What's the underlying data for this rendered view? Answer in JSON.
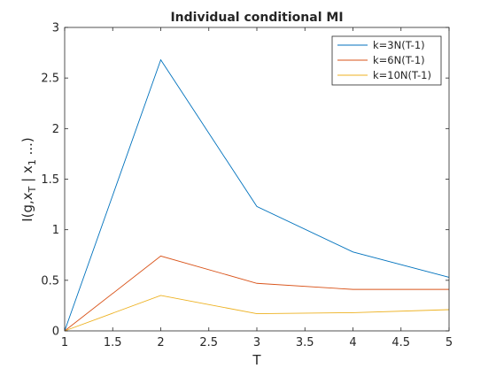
{
  "chart_data": {
    "type": "line",
    "title": "Individual conditional MI",
    "xlabel": "T",
    "ylabel": {
      "main": "I(g,x",
      "sub1": "T",
      "mid": " | x",
      "sub2": "1",
      "tail": " ...)"
    },
    "x": [
      1,
      2,
      3,
      4,
      5
    ],
    "xlim": [
      1,
      5
    ],
    "ylim": [
      0,
      3
    ],
    "xticks": [
      "1",
      "1.5",
      "2",
      "2.5",
      "3",
      "3.5",
      "4",
      "4.5",
      "5"
    ],
    "yticks": [
      "0",
      "0.5",
      "1",
      "1.5",
      "2",
      "2.5",
      "3"
    ],
    "grid": false,
    "legend_position": "top-right",
    "series": [
      {
        "name": "k=3N(T-1)",
        "color": "#0072BD",
        "values": [
          0,
          2.68,
          1.23,
          0.78,
          0.53
        ]
      },
      {
        "name": "k=6N(T-1)",
        "color": "#D95319",
        "values": [
          0,
          0.74,
          0.47,
          0.41,
          0.41
        ]
      },
      {
        "name": "k=10N(T-1)",
        "color": "#EDB120",
        "values": [
          0,
          0.35,
          0.17,
          0.18,
          0.21
        ]
      }
    ]
  }
}
